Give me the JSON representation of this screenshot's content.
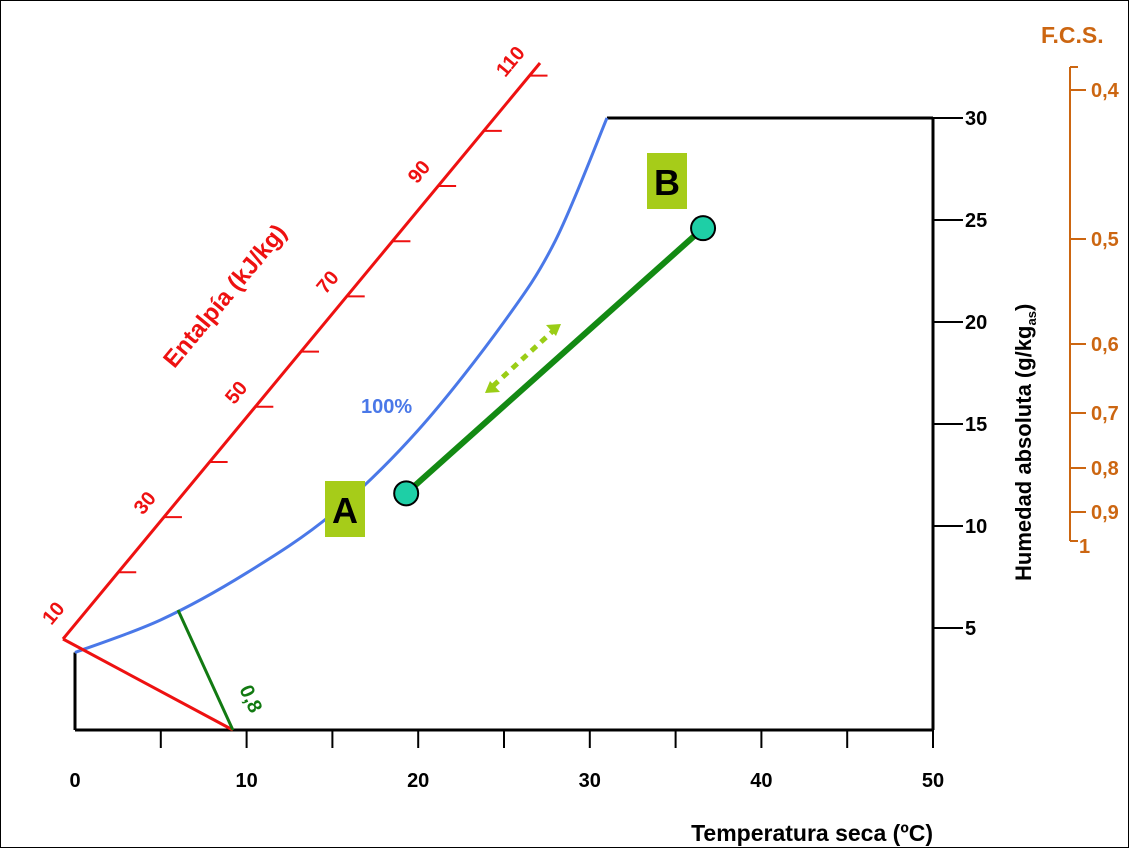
{
  "chart_data": {
    "type": "line",
    "title": "",
    "xlabel": "Temperatura seca (ºC)",
    "ylabel": "Humedad absoluta (g/kg",
    "ylabel_sub": "as",
    "ylabel_close": ")",
    "xlim": [
      0,
      50
    ],
    "ylim": [
      0,
      30
    ],
    "x_ticks": [
      0,
      10,
      20,
      30,
      40,
      50
    ],
    "y_ticks": [
      5,
      10,
      15,
      20,
      25,
      30
    ],
    "saturation_curve": {
      "label": "100%",
      "color": "#4a78e8",
      "points": [
        [
          0,
          3.8
        ],
        [
          5,
          5.4
        ],
        [
          10,
          7.7
        ],
        [
          15,
          10.6
        ],
        [
          20,
          14.7
        ],
        [
          25,
          20.0
        ],
        [
          28,
          24.0
        ],
        [
          31,
          30.0
        ]
      ]
    },
    "enthalpy_scale": {
      "label": "Entalpía (kJ/kg)",
      "color": "#ee1111",
      "tick_labels": [
        "10",
        "30",
        "50",
        "70",
        "90",
        "110"
      ]
    },
    "shf_scale": {
      "label": "F.C.S.",
      "color": "#cc6611",
      "tick_labels": [
        "0,4",
        "0,5",
        "0,6",
        "0,7",
        "0,8",
        "0,9",
        "1"
      ]
    },
    "shf_reference_line": {
      "label": "0,8",
      "color": "#127a12"
    },
    "process": {
      "color": "#138a13",
      "points": [
        {
          "name": "A",
          "x": 19.3,
          "y": 11.6
        },
        {
          "name": "B",
          "x": 36.6,
          "y": 24.6
        }
      ]
    }
  }
}
